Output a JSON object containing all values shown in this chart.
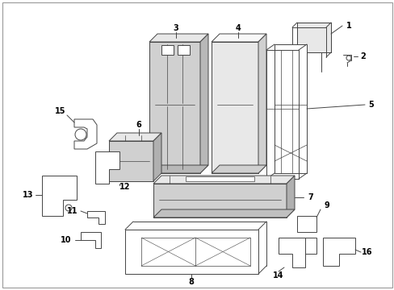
{
  "background_color": "#ffffff",
  "line_color": "#444444",
  "text_color": "#000000",
  "fig_width": 4.89,
  "fig_height": 3.6,
  "dpi": 100,
  "border_color": "#888888",
  "fill_light": "#e8e8e8",
  "fill_medium": "#d0d0d0",
  "fill_dark": "#c0c0c0"
}
